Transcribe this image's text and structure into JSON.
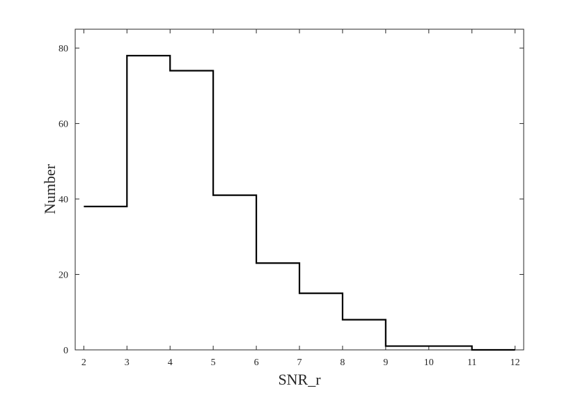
{
  "chart_data": {
    "type": "line",
    "drawstyle": "steps-post",
    "xlabel": "SNR_r",
    "ylabel": "Number",
    "xlim": [
      1.8,
      12.2
    ],
    "ylim": [
      0,
      85
    ],
    "xticks": [
      "2",
      "3",
      "4",
      "5",
      "6",
      "7",
      "8",
      "9",
      "10",
      "11",
      "12"
    ],
    "yticks": [
      "0",
      "20",
      "40",
      "60",
      "80"
    ],
    "grid": false,
    "legend": "none",
    "series": [
      {
        "x": [
          2,
          3,
          4,
          5,
          6,
          7,
          8,
          9,
          10,
          11,
          12
        ],
        "y": [
          38,
          78,
          74,
          41,
          23,
          15,
          8,
          1,
          1,
          0,
          0
        ]
      }
    ],
    "colors": {
      "line": "#000000",
      "axis": "#262626"
    }
  }
}
